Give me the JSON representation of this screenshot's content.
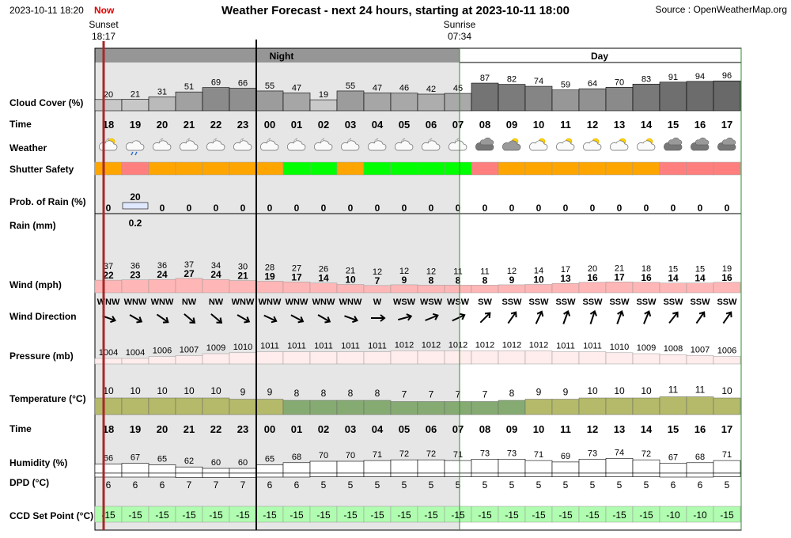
{
  "header": {
    "datetime": "2023-10-11 18:20",
    "now_label": "Now",
    "title": "Weather Forecast - next 24 hours, starting at 2023-10-11 18:00",
    "source": "Source : OpenWeatherMap.org"
  },
  "sun": {
    "sunset_label": "Sunset",
    "sunset_time": "18:17",
    "sunrise_label": "Sunrise",
    "sunrise_time": "07:34"
  },
  "bands": {
    "night": "Night",
    "day": "Day"
  },
  "row_labels": {
    "cloud": "Cloud Cover (%)",
    "time": "Time",
    "weather": "Weather",
    "shutter": "Shutter Safety",
    "rain_prob": "Prob. of Rain (%)",
    "rain": "Rain (mm)",
    "wind": "Wind (mph)",
    "wind_dir": "Wind Direction",
    "pressure": "Pressure (mb)",
    "temp": "Temperature (°C)",
    "time2": "Time",
    "humidity": "Humidity (%)",
    "dpd": "DPD (°C)",
    "ccd": "CCD Set Point (°C)"
  },
  "colors": {
    "night_bg": "#e6e6e6",
    "night_band": "#969696",
    "wind_bar": "#ffb6b6",
    "pressure_bar": "#ffecec",
    "temp_warm": "#b4ba6a",
    "temp_cool": "#86ab72",
    "ccd_bg": "#b0fcb0",
    "shutter_orange": "#ffa500",
    "shutter_red": "#ff7f7f",
    "shutter_green": "#00ff00",
    "now_red": "#e00000"
  },
  "chart_data": {
    "type": "table",
    "hours": [
      "18",
      "19",
      "20",
      "21",
      "22",
      "23",
      "00",
      "01",
      "02",
      "03",
      "04",
      "05",
      "06",
      "07",
      "08",
      "09",
      "10",
      "11",
      "12",
      "13",
      "14",
      "15",
      "16",
      "17"
    ],
    "cloud_cover": [
      20,
      21,
      31,
      51,
      69,
      66,
      55,
      47,
      19,
      55,
      47,
      46,
      42,
      45,
      87,
      82,
      74,
      59,
      64,
      70,
      83,
      91,
      94,
      96
    ],
    "weather_icons": [
      "few-clouds-night-icon",
      "rain-icon",
      "partly-cloudy-night-icon",
      "partly-cloudy-night-icon",
      "partly-cloudy-night-icon",
      "partly-cloudy-night-icon",
      "partly-cloudy-night-icon",
      "partly-cloudy-night-icon",
      "partly-cloudy-night-icon",
      "partly-cloudy-night-icon",
      "partly-cloudy-night-icon",
      "partly-cloudy-night-icon",
      "partly-cloudy-night-icon",
      "partly-cloudy-night-icon",
      "overcast-icon",
      "broken-clouds-day-icon",
      "partly-cloudy-day-icon",
      "partly-cloudy-day-icon",
      "partly-cloudy-day-icon",
      "partly-cloudy-day-icon",
      "partly-cloudy-day-icon",
      "overcast-icon",
      "overcast-icon",
      "overcast-icon"
    ],
    "shutter_safety": [
      "orange",
      "red",
      "orange",
      "orange",
      "orange",
      "orange",
      "orange",
      "green",
      "green",
      "orange",
      "green",
      "green",
      "green",
      "green",
      "red",
      "orange",
      "orange",
      "orange",
      "orange",
      "orange",
      "orange",
      "red",
      "red",
      "red"
    ],
    "rain_probability": [
      0,
      20,
      0,
      0,
      0,
      0,
      0,
      0,
      0,
      0,
      0,
      0,
      0,
      0,
      0,
      0,
      0,
      0,
      0,
      0,
      0,
      0,
      0,
      0
    ],
    "rain_mm": [
      null,
      "0.2",
      null,
      null,
      null,
      null,
      null,
      null,
      null,
      null,
      null,
      null,
      null,
      null,
      null,
      null,
      null,
      null,
      null,
      null,
      null,
      null,
      null,
      null
    ],
    "wind_gust": [
      37,
      36,
      36,
      37,
      34,
      30,
      28,
      27,
      26,
      21,
      12,
      12,
      12,
      11,
      11,
      12,
      14,
      17,
      20,
      21,
      18,
      15,
      15,
      19
    ],
    "wind_speed": [
      22,
      23,
      24,
      27,
      24,
      21,
      19,
      17,
      14,
      10,
      7,
      9,
      8,
      8,
      8,
      9,
      10,
      13,
      16,
      17,
      16,
      14,
      14,
      16
    ],
    "wind_direction": [
      "WNW",
      "WNW",
      "WNW",
      "NW",
      "NW",
      "WNW",
      "WNW",
      "WNW",
      "WNW",
      "WNW",
      "W",
      "WSW",
      "WSW",
      "WSW",
      "SW",
      "SSW",
      "SSW",
      "SSW",
      "SSW",
      "SSW",
      "SSW",
      "SSW",
      "SSW",
      "SSW"
    ],
    "wind_angle": [
      110,
      120,
      125,
      130,
      130,
      120,
      115,
      118,
      120,
      110,
      90,
      75,
      68,
      65,
      45,
      35,
      25,
      20,
      18,
      20,
      22,
      38,
      35,
      35
    ],
    "pressure": [
      1004,
      1004,
      1006,
      1007,
      1009,
      1010,
      1011,
      1011,
      1011,
      1011,
      1011,
      1012,
      1012,
      1012,
      1012,
      1012,
      1012,
      1011,
      1011,
      1010,
      1009,
      1008,
      1007,
      1006
    ],
    "temperature": [
      10,
      10,
      10,
      10,
      10,
      9,
      9,
      8,
      8,
      8,
      8,
      7,
      7,
      7,
      7,
      8,
      9,
      9,
      10,
      10,
      10,
      11,
      11,
      10
    ],
    "humidity": [
      66,
      67,
      65,
      62,
      60,
      60,
      65,
      68,
      70,
      70,
      71,
      72,
      72,
      71,
      73,
      73,
      71,
      69,
      73,
      74,
      72,
      67,
      68,
      71
    ],
    "dpd": [
      6,
      6,
      6,
      7,
      7,
      7,
      6,
      6,
      5,
      5,
      5,
      5,
      5,
      5,
      5,
      5,
      5,
      5,
      5,
      5,
      5,
      6,
      6,
      5
    ],
    "ccd_set_point": [
      -15,
      -15,
      -15,
      -15,
      -15,
      -15,
      -15,
      -15,
      -15,
      -15,
      -15,
      -15,
      -15,
      -15,
      -15,
      -15,
      -15,
      -15,
      -15,
      -15,
      -15,
      -10,
      -10,
      -15
    ]
  }
}
